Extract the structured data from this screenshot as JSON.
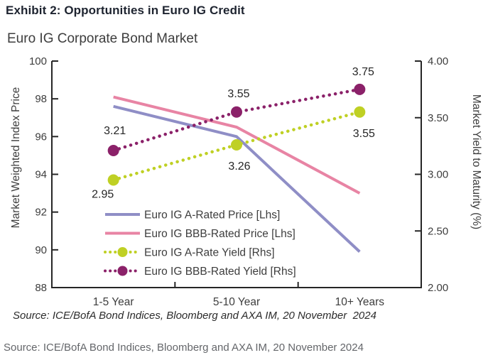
{
  "page": {
    "exhibit_title": "Exhibit 2: Opportunities in Euro IG Credit",
    "footer_source": "Source: ICE/BofA Bond Indices, Bloomberg and AXA IM, 20 November 2024"
  },
  "chart_data": {
    "type": "line",
    "title": "Euro IG Corporate Bond Market",
    "categories": [
      "1-5 Year",
      "5-10 Year",
      "10+ Years"
    ],
    "series": [
      {
        "name": "Euro IG A-Rated Price [Lhs]",
        "axis": "left",
        "style": "solid",
        "color": "#8f8ec6",
        "values": [
          97.6,
          96.0,
          89.9
        ]
      },
      {
        "name": "Euro IG BBB-Rated Price [Lhs]",
        "axis": "left",
        "style": "solid",
        "color": "#e884a4",
        "values": [
          98.1,
          96.5,
          93.0
        ]
      },
      {
        "name": "Euro IG A-Rate Yield [Rhs]",
        "axis": "right",
        "style": "dotted",
        "color": "#bfd024",
        "values": [
          2.95,
          3.26,
          3.55
        ],
        "point_labels": [
          "2.95",
          "3.26",
          "3.55"
        ],
        "label_offsets": [
          {
            "dx": -15,
            "dy": 20
          },
          {
            "dx": 4,
            "dy": 30
          },
          {
            "dx": 6,
            "dy": 30
          }
        ]
      },
      {
        "name": "Euro IG BBB-Rated Yield [Rhs]",
        "axis": "right",
        "style": "dotted",
        "color": "#8b2169",
        "values": [
          3.21,
          3.55,
          3.75
        ],
        "point_labels": [
          "3.21",
          "3.55",
          "3.75"
        ],
        "label_offsets": [
          {
            "dx": 2,
            "dy": -28
          },
          {
            "dx": 3,
            "dy": -26
          },
          {
            "dx": 5,
            "dy": -25
          }
        ]
      }
    ],
    "left_axis": {
      "label": "Market Weighted Index Price",
      "min": 88,
      "max": 100,
      "ticks": [
        "100",
        "98",
        "96",
        "94",
        "92",
        "90",
        "88"
      ]
    },
    "right_axis": {
      "label": "Market Yield to Maturity (%)",
      "min": 2,
      "max": 4,
      "ticks": [
        "4.00",
        "3.50",
        "3.00",
        "2.50",
        "2.00"
      ]
    },
    "grid": false,
    "legend_position": "inside-bottom-left",
    "source_note": "Source: ICE/BofA Bond Indices, Bloomberg and AXA IM, 20 November  2024"
  }
}
